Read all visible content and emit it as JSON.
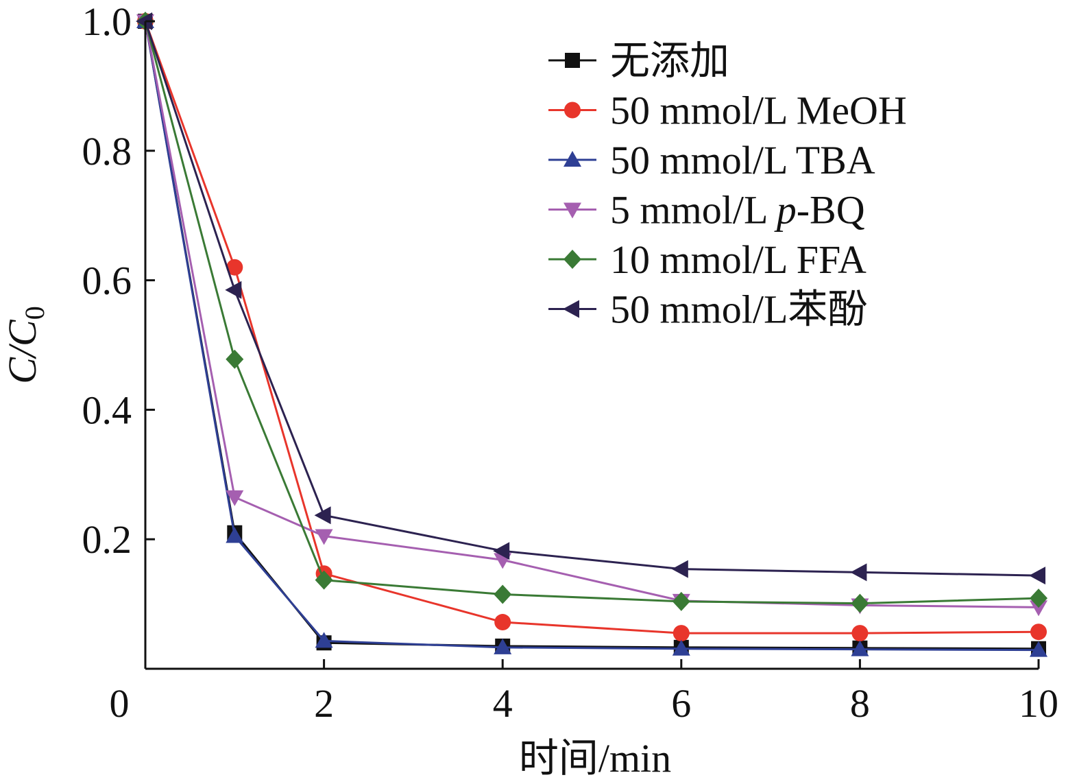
{
  "chart_data": {
    "type": "line",
    "title": "",
    "xlabel": "时间/min",
    "ylabel": "C/C₀",
    "ylabel_parts": {
      "base": "C/C",
      "sub": "0"
    },
    "xlim": [
      0,
      10
    ],
    "ylim": [
      0,
      1.0
    ],
    "x_ticks": [
      0,
      2,
      4,
      6,
      8,
      10
    ],
    "x_tick_labels": [
      "0",
      "2",
      "4",
      "6",
      "8",
      "10"
    ],
    "y_ticks": [
      0.2,
      0.4,
      0.6,
      0.8,
      1.0
    ],
    "y_tick_labels": [
      "0.2",
      "0.4",
      "0.6",
      "0.8",
      "1.0"
    ],
    "legend_position": "top-right",
    "grid": false,
    "x": [
      0,
      1,
      2,
      4,
      6,
      8,
      10
    ],
    "series": [
      {
        "name": "无添加",
        "name_parts": [
          "无添加"
        ],
        "color": "#111111",
        "marker": "square",
        "values": [
          1.0,
          0.21,
          0.04,
          0.035,
          0.033,
          0.032,
          0.031
        ]
      },
      {
        "name": "50 mmol/L MeOH",
        "name_parts": [
          "50 mmol/L MeOH"
        ],
        "color": "#e8352b",
        "marker": "circle",
        "values": [
          1.0,
          0.62,
          0.147,
          0.072,
          0.055,
          0.055,
          0.057
        ]
      },
      {
        "name": "50 mmol/L TBA",
        "name_parts": [
          "50 mmol/L TBA"
        ],
        "color": "#2e3f94",
        "marker": "triangle-up",
        "values": [
          1.0,
          0.205,
          0.043,
          0.033,
          0.031,
          0.03,
          0.029
        ]
      },
      {
        "name": "5 mmol/L p-BQ",
        "name_parts": [
          "5 mmol/L ",
          "p",
          "-BQ"
        ],
        "color": "#a55fb0",
        "marker": "triangle-down",
        "values": [
          1.0,
          0.265,
          0.205,
          0.168,
          0.105,
          0.098,
          0.095
        ]
      },
      {
        "name": "10 mmol/L FFA",
        "name_parts": [
          "10 mmol/L FFA"
        ],
        "color": "#3a7a35",
        "marker": "diamond",
        "values": [
          1.0,
          0.478,
          0.137,
          0.115,
          0.104,
          0.101,
          0.109
        ]
      },
      {
        "name": "50 mmol/L苯酚",
        "name_parts": [
          "50 mmol/L苯酚"
        ],
        "color": "#2c2250",
        "marker": "triangle-left",
        "values": [
          1.0,
          0.585,
          0.237,
          0.182,
          0.154,
          0.149,
          0.144
        ]
      }
    ]
  }
}
